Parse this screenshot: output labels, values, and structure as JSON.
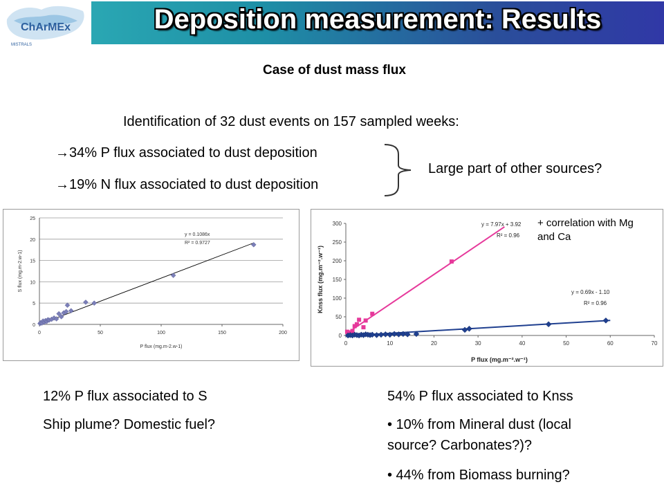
{
  "header": {
    "title": "Deposition measurement: Results",
    "logo_text": "ChArMEx",
    "logo_subtext": "MISTRALS"
  },
  "content": {
    "subtitle": "Case of dust mass flux",
    "intro": "Identification of 32 dust events on 157 sampled weeks:",
    "bullet1": "→34% P flux associated to dust deposition",
    "bullet2": "→19% N flux associated to dust deposition",
    "brace_note": "Large part of other sources?",
    "correlation_note_1": "+ correlation with Mg",
    "correlation_note_2": "and Ca",
    "left_caption_1": "12% P flux associated to S",
    "left_caption_2": "Ship plume? Domestic fuel?",
    "right_caption_1": "54% P flux associated to Knss",
    "right_bullet_1a": "• 10% from Mineral dust (local",
    "right_bullet_1b": "source? Carbonates?)?",
    "right_bullet_2": "• 44% from Biomass burning?"
  },
  "chart_data": [
    {
      "type": "scatter",
      "xlabel": "P flux (mg.m-2.w-1)",
      "ylabel": "S flux (mg.m-2.w-1)",
      "xlim": [
        0,
        200
      ],
      "ylim": [
        0,
        25
      ],
      "xticks": [
        0,
        50,
        100,
        150,
        200
      ],
      "yticks": [
        0,
        5,
        10,
        15,
        20,
        25
      ],
      "grid": true,
      "marker_color": "#7b7fb8",
      "trendline": {
        "equation": "y = 0.1086x",
        "r2": "R² = 0.9727",
        "slope": 0.1086,
        "intercept": 0
      },
      "points": [
        [
          0.5,
          0.2
        ],
        [
          1,
          0.4
        ],
        [
          2,
          0.3
        ],
        [
          3,
          0.8
        ],
        [
          4,
          0.5
        ],
        [
          5,
          0.9
        ],
        [
          6,
          0.7
        ],
        [
          7,
          1.1
        ],
        [
          8,
          1.0
        ],
        [
          10,
          1.2
        ],
        [
          12,
          1.5
        ],
        [
          14,
          1.3
        ],
        [
          16,
          2.5
        ],
        [
          18,
          1.8
        ],
        [
          20,
          2.7
        ],
        [
          22,
          3.0
        ],
        [
          23,
          4.5
        ],
        [
          26,
          3.2
        ],
        [
          38,
          5.2
        ],
        [
          45,
          5.0
        ],
        [
          110,
          11.5
        ],
        [
          176,
          18.7
        ]
      ]
    },
    {
      "type": "scatter",
      "xlabel": "P flux (mg.m⁻².w⁻¹)",
      "ylabel": "Knss flux (mg.m⁻².w⁻¹)",
      "xlim": [
        0,
        70
      ],
      "ylim": [
        0,
        300
      ],
      "xticks": [
        0,
        10,
        20,
        30,
        40,
        50,
        60,
        70
      ],
      "yticks": [
        0,
        50,
        100,
        150,
        200,
        250,
        300
      ],
      "grid": false,
      "series": [
        {
          "color": "#e6399b",
          "marker": "square",
          "equation": "y = 7.97x + 3.92",
          "r2": "R² = 0.96",
          "slope": 7.97,
          "intercept": 3.92,
          "line_x": [
            0,
            36
          ],
          "points": [
            [
              0.3,
              10
            ],
            [
              0.6,
              5
            ],
            [
              1,
              8
            ],
            [
              1.5,
              12
            ],
            [
              2,
              25
            ],
            [
              2.5,
              30
            ],
            [
              3,
              42
            ],
            [
              4,
              22
            ],
            [
              4.5,
              40
            ],
            [
              6,
              58
            ],
            [
              24,
              198
            ]
          ]
        },
        {
          "color": "#1f3f8f",
          "marker": "diamond",
          "equation": "y = 0.69x - 1.10",
          "r2": "R² = 0.96",
          "slope": 0.69,
          "intercept": -1.1,
          "line_x": [
            0,
            60
          ],
          "points": [
            [
              0.5,
              0
            ],
            [
              1,
              1
            ],
            [
              1.5,
              0
            ],
            [
              2,
              2
            ],
            [
              2.5,
              1
            ],
            [
              3,
              0
            ],
            [
              3.5,
              2
            ],
            [
              4,
              1
            ],
            [
              4.5,
              3
            ],
            [
              5,
              2
            ],
            [
              5.5,
              1
            ],
            [
              6,
              2
            ],
            [
              7,
              1
            ],
            [
              8,
              2
            ],
            [
              9,
              3
            ],
            [
              10,
              2
            ],
            [
              11,
              4
            ],
            [
              12,
              3
            ],
            [
              13,
              4
            ],
            [
              14,
              3
            ],
            [
              16,
              4
            ],
            [
              27,
              15
            ],
            [
              28,
              18
            ],
            [
              46,
              30
            ],
            [
              59,
              40
            ]
          ]
        }
      ]
    }
  ]
}
